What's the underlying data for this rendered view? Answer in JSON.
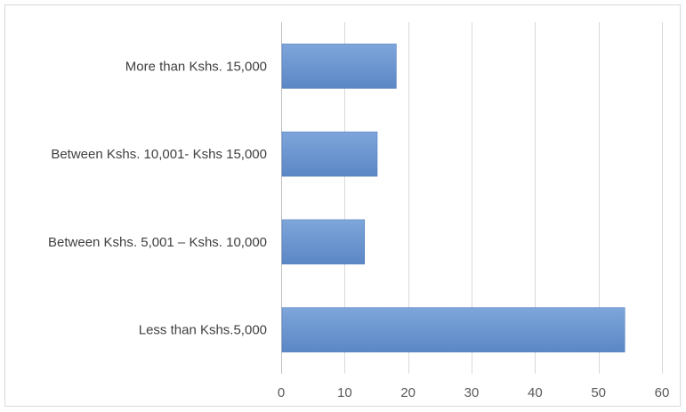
{
  "chart_data": {
    "type": "bar",
    "orientation": "horizontal",
    "categories": [
      "Less than Kshs.5,000",
      "Between Kshs. 5,001 – Kshs. 10,000",
      "Between Kshs. 10,001- Kshs 15,000",
      "More than Kshs. 15,000"
    ],
    "values": [
      54,
      13,
      15,
      18
    ],
    "xlim": [
      0,
      60
    ],
    "xticks": [
      0,
      10,
      20,
      30,
      40,
      50,
      60
    ],
    "tick_labels": [
      "0",
      "10",
      "20",
      "30",
      "40",
      "50",
      "60"
    ],
    "title": "",
    "xlabel": "",
    "ylabel": "",
    "grid": "vertical",
    "legend": "none",
    "bar_color": "#5b87c5",
    "bar_color_light": "#7ea6db"
  }
}
